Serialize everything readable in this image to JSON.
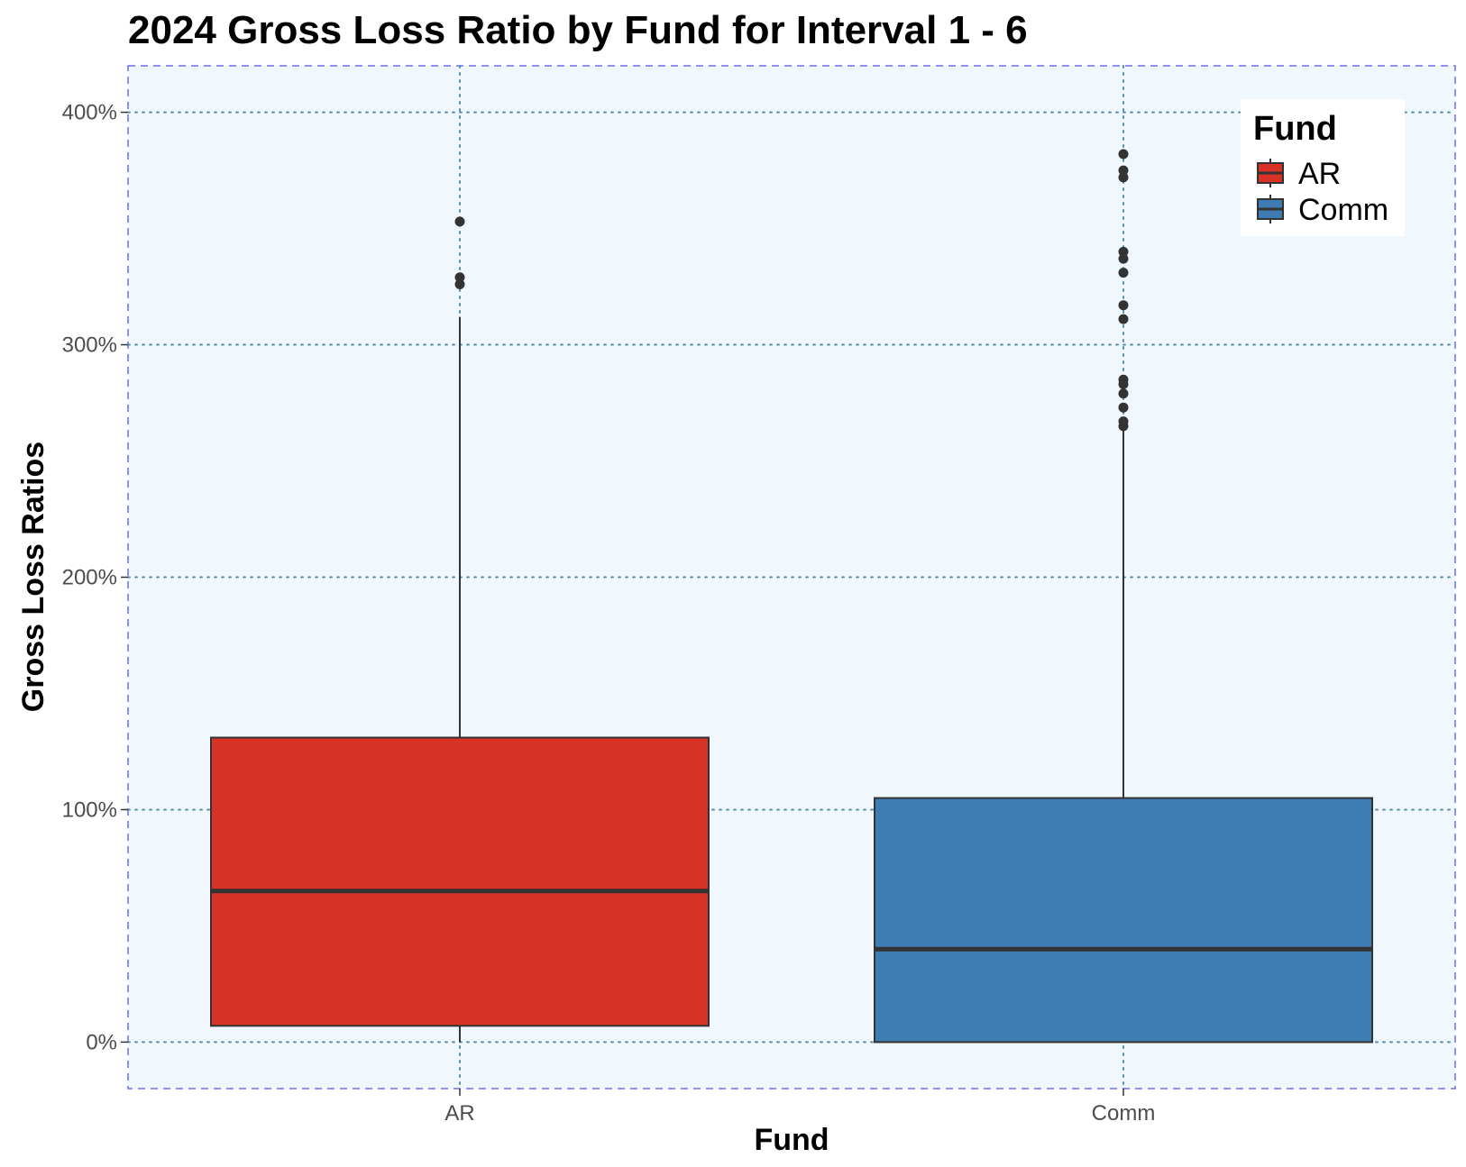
{
  "colors": {
    "panel_background": "#f0f7fd",
    "panel_border": "#6b6ef0",
    "grid": "#5a8fb0",
    "box_outline": "#333333",
    "tick_text": "#4d4d4d"
  },
  "chart_data": {
    "type": "boxplot",
    "title": "2024 Gross Loss Ratio by Fund for Interval 1 - 6",
    "xlabel": "Fund",
    "ylabel": "Gross Loss Ratios",
    "categories": [
      "AR",
      "Comm"
    ],
    "y_axis": {
      "min": -20,
      "max": 420,
      "ticks": [
        0,
        100,
        200,
        300,
        400
      ],
      "tick_labels": [
        "0%",
        "100%",
        "200%",
        "300%",
        "400%"
      ],
      "unit": "%"
    },
    "grid": true,
    "legend": {
      "title": "Fund",
      "position": "top-right",
      "entries": [
        {
          "label": "AR",
          "color": "#d73226"
        },
        {
          "label": "Comm",
          "color": "#3e7cb3"
        }
      ]
    },
    "series": [
      {
        "category": "AR",
        "color": "#d73226",
        "whisker_low": 0,
        "q1": 7,
        "median": 65,
        "q3": 131,
        "whisker_high": 312,
        "outliers": [
          326,
          329,
          353
        ]
      },
      {
        "category": "Comm",
        "color": "#3e7cb3",
        "whisker_low": 0,
        "q1": 0,
        "median": 40,
        "q3": 105,
        "whisker_high": 264,
        "outliers": [
          265,
          267,
          273,
          279,
          283,
          285,
          311,
          317,
          331,
          337,
          340,
          372,
          375,
          382
        ]
      }
    ]
  }
}
